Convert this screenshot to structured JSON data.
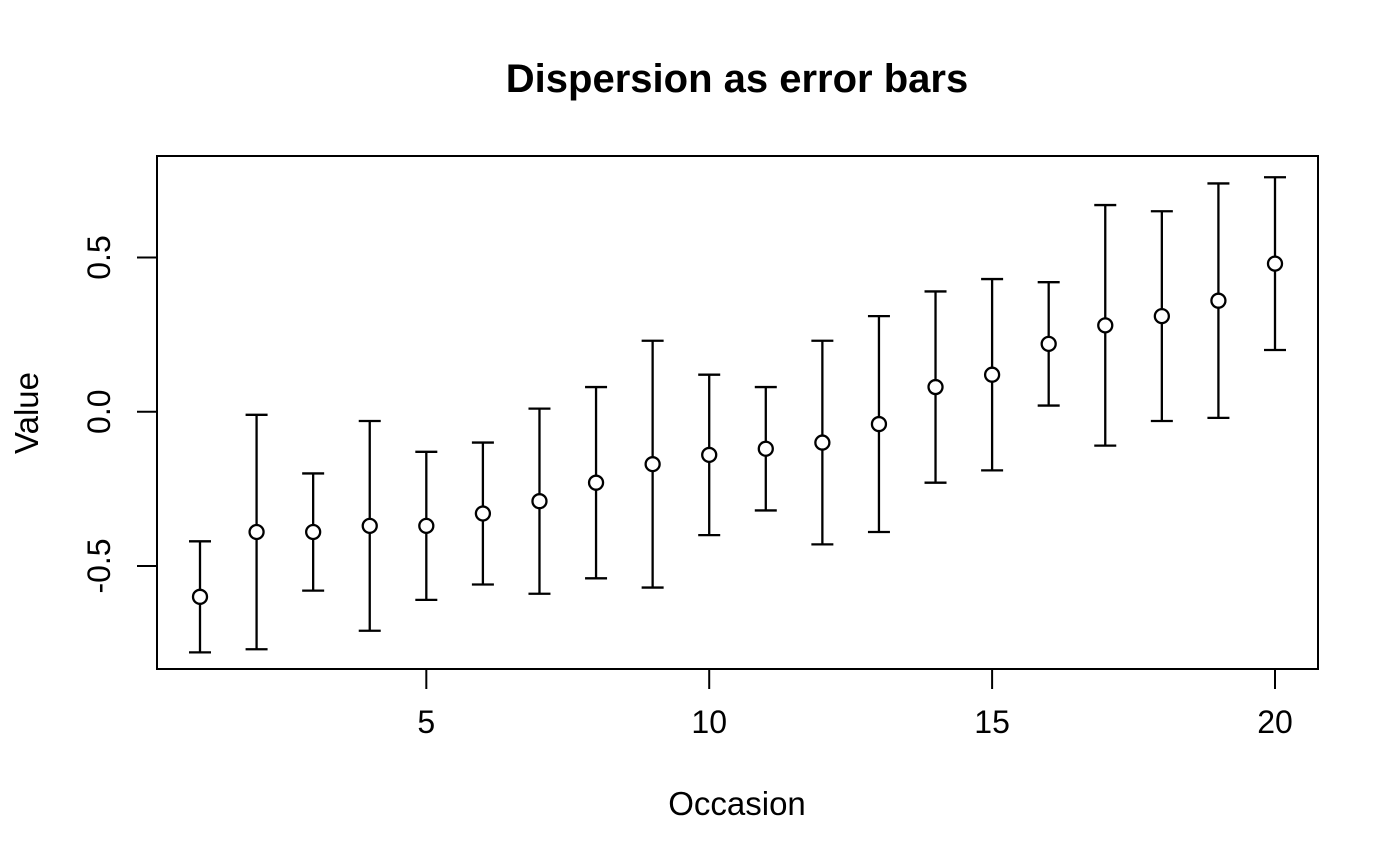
{
  "chart_data": {
    "type": "scatter",
    "subtype": "points-with-error-bars",
    "title": "Dispersion as error bars",
    "xlabel": "Occasion",
    "ylabel": "Value",
    "x": [
      1,
      2,
      3,
      4,
      5,
      6,
      7,
      8,
      9,
      10,
      11,
      12,
      13,
      14,
      15,
      16,
      17,
      18,
      19,
      20
    ],
    "series": [
      {
        "name": "Value",
        "centers": [
          -0.6,
          -0.39,
          -0.39,
          -0.37,
          -0.37,
          -0.33,
          -0.29,
          -0.23,
          -0.17,
          -0.14,
          -0.12,
          -0.1,
          -0.04,
          0.08,
          0.12,
          0.22,
          0.28,
          0.31,
          0.36,
          0.48
        ],
        "errors": [
          0.18,
          0.38,
          0.19,
          0.34,
          0.24,
          0.23,
          0.3,
          0.31,
          0.4,
          0.26,
          0.2,
          0.33,
          0.35,
          0.31,
          0.31,
          0.2,
          0.39,
          0.34,
          0.38,
          0.28
        ]
      }
    ],
    "x_ticks": {
      "values": [
        5,
        10,
        15,
        20
      ],
      "labels": [
        "5",
        "10",
        "15",
        "20"
      ]
    },
    "y_ticks": {
      "values": [
        -0.5,
        0.0,
        0.5
      ],
      "labels": [
        "-0.5",
        "0.0",
        "0.5"
      ]
    },
    "xlim": [
      0.24,
      20.76
    ],
    "ylim": [
      -0.834,
      0.829
    ],
    "grid": false,
    "legend": "none",
    "marker": "open-circle",
    "colors": {
      "line": "#000000",
      "marker_stroke": "#000000",
      "marker_fill": "#ffffff",
      "text": "#000000",
      "background": "#ffffff"
    }
  }
}
